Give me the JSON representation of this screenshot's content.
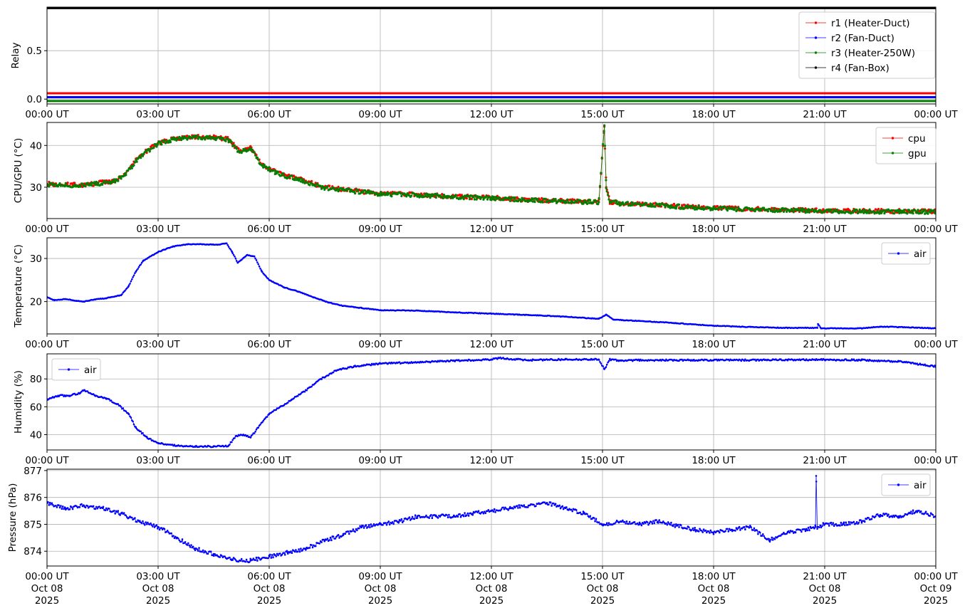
{
  "chart_data": [
    {
      "type": "line",
      "ylabel": "Relay",
      "ylim": [
        -0.05,
        0.95
      ],
      "yticks": [
        0.0,
        0.5
      ],
      "ytick_labels": [
        "0.0",
        "0.5"
      ],
      "xlim": [
        0,
        24
      ],
      "xtick_hours": [
        0,
        3,
        6,
        9,
        12,
        15,
        18,
        21,
        24
      ],
      "xtick_labels": [
        "00:00 UT",
        "03:00 UT",
        "06:00 UT",
        "09:00 UT",
        "12:00 UT",
        "15:00 UT",
        "18:00 UT",
        "21:00 UT",
        "00:00 UT"
      ],
      "grid": true,
      "legend_position": "upper right",
      "series": [
        {
          "name": "r1 (Heater-Duct)",
          "color": "#ff0000",
          "x": [
            0,
            24
          ],
          "y": [
            0.06,
            0.06
          ]
        },
        {
          "name": "r2 (Fan-Duct)",
          "color": "#0000ff",
          "x": [
            0,
            24
          ],
          "y": [
            0.02,
            0.02
          ]
        },
        {
          "name": "r3 (Heater-250W)",
          "color": "#008000",
          "x": [
            0,
            24
          ],
          "y": [
            -0.02,
            -0.02
          ]
        },
        {
          "name": "r4 (Fan-Box)",
          "color": "#000000",
          "x": [
            0,
            24
          ],
          "y": [
            0.94,
            0.94
          ]
        }
      ]
    },
    {
      "type": "line",
      "ylabel": "CPU/GPU (°C)",
      "ylim": [
        22.5,
        45.5
      ],
      "yticks": [
        30,
        40
      ],
      "ytick_labels": [
        "30",
        "40"
      ],
      "xlim": [
        0,
        24
      ],
      "xtick_hours": [
        0,
        3,
        6,
        9,
        12,
        15,
        18,
        21,
        24
      ],
      "xtick_labels": [
        "00:00 UT",
        "03:00 UT",
        "06:00 UT",
        "09:00 UT",
        "12:00 UT",
        "15:00 UT",
        "18:00 UT",
        "21:00 UT",
        "00:00 UT"
      ],
      "grid": true,
      "legend_position": "upper right",
      "series": [
        {
          "name": "cpu",
          "color": "#ff0000",
          "x": [
            0,
            1,
            1.8,
            2.1,
            2.5,
            3,
            3.5,
            4,
            4.5,
            4.9,
            5.2,
            5.5,
            5.8,
            6.2,
            6.8,
            7.5,
            8,
            9,
            10,
            11,
            12,
            13,
            14,
            14.9,
            15.05,
            15.1,
            15.2,
            15.5,
            16,
            17,
            18,
            19,
            20,
            21,
            22,
            23,
            24
          ],
          "y": [
            30.8,
            30.5,
            31.5,
            33,
            37.5,
            40.5,
            41.8,
            42,
            42,
            41.5,
            38.5,
            39.5,
            35.5,
            33.5,
            32,
            30,
            29.5,
            28.5,
            28.2,
            27.8,
            27.5,
            27,
            26.7,
            26.5,
            44.5,
            30,
            26.5,
            26.2,
            26,
            25.5,
            25,
            24.8,
            24.6,
            24.4,
            24.3,
            24.3,
            24.2
          ]
        },
        {
          "name": "gpu",
          "color": "#008000",
          "x": [
            0,
            1,
            1.8,
            2.1,
            2.5,
            3,
            3.5,
            4,
            4.5,
            4.9,
            5.2,
            5.5,
            5.8,
            6.2,
            6.8,
            7.5,
            8,
            9,
            10,
            11,
            12,
            13,
            14,
            14.9,
            15.05,
            15.1,
            15.2,
            15.5,
            16,
            17,
            18,
            19,
            20,
            21,
            22,
            23,
            24
          ],
          "y": [
            30.6,
            30.4,
            31.4,
            32.8,
            37.3,
            40.4,
            41.6,
            41.9,
            41.8,
            41.3,
            38.4,
            39.3,
            35.3,
            33.3,
            31.8,
            29.8,
            29.3,
            28.4,
            28.1,
            27.7,
            27.4,
            26.9,
            26.6,
            26.4,
            44.8,
            29.8,
            26.4,
            26.1,
            25.9,
            25.4,
            24.9,
            24.7,
            24.5,
            24.3,
            24.2,
            24.2,
            24.1
          ]
        }
      ]
    },
    {
      "type": "line",
      "ylabel": "Temperature (°C)",
      "ylim": [
        12.5,
        34.8
      ],
      "yticks": [
        20,
        30
      ],
      "ytick_labels": [
        "20",
        "30"
      ],
      "xlim": [
        0,
        24
      ],
      "xtick_hours": [
        0,
        3,
        6,
        9,
        12,
        15,
        18,
        21,
        24
      ],
      "xtick_labels": [
        "00:00 UT",
        "03:00 UT",
        "06:00 UT",
        "09:00 UT",
        "12:00 UT",
        "15:00 UT",
        "18:00 UT",
        "21:00 UT",
        "00:00 UT"
      ],
      "grid": true,
      "legend_position": "upper right",
      "series": [
        {
          "name": "air",
          "color": "#0000ff",
          "x": [
            0,
            0.2,
            0.5,
            0.8,
            1.0,
            1.3,
            1.6,
            2.0,
            2.2,
            2.4,
            2.6,
            3.0,
            3.4,
            3.8,
            4.2,
            4.6,
            4.85,
            5.0,
            5.15,
            5.4,
            5.6,
            5.8,
            6.0,
            6.4,
            6.8,
            7.2,
            7.6,
            8.0,
            8.5,
            9.0,
            10.0,
            11.0,
            12.0,
            13.0,
            14.0,
            14.9,
            15.1,
            15.3,
            16.0,
            17.0,
            18.0,
            19.0,
            20.0,
            20.8,
            20.82,
            20.9,
            21.0,
            22.0,
            22.5,
            23.0,
            24.0
          ],
          "y": [
            21.0,
            20.3,
            20.6,
            20.2,
            20.0,
            20.5,
            20.8,
            21.5,
            23.5,
            27.0,
            29.5,
            31.5,
            32.8,
            33.3,
            33.3,
            33.2,
            33.5,
            31.5,
            29.0,
            30.8,
            30.5,
            27.0,
            25.0,
            23.3,
            22.3,
            21.0,
            19.8,
            19.0,
            18.5,
            18.0,
            17.9,
            17.5,
            17.2,
            16.9,
            16.5,
            16.0,
            17.0,
            15.8,
            15.5,
            15.0,
            14.4,
            14.1,
            13.9,
            13.9,
            14.8,
            13.8,
            13.8,
            13.8,
            14.2,
            14.1,
            13.8
          ]
        }
      ]
    },
    {
      "type": "line",
      "ylabel": "Humidity (%)",
      "ylim": [
        29,
        98
      ],
      "yticks": [
        40,
        60,
        80
      ],
      "ytick_labels": [
        "40",
        "60",
        "80"
      ],
      "xlim": [
        0,
        24
      ],
      "xtick_hours": [
        0,
        3,
        6,
        9,
        12,
        15,
        18,
        21,
        24
      ],
      "xtick_labels": [
        "00:00 UT",
        "03:00 UT",
        "06:00 UT",
        "09:00 UT",
        "12:00 UT",
        "15:00 UT",
        "18:00 UT",
        "21:00 UT",
        "00:00 UT"
      ],
      "grid": true,
      "legend_position": "upper left",
      "series": [
        {
          "name": "air",
          "color": "#0000ff",
          "x": [
            0,
            0.3,
            0.6,
            0.9,
            1.0,
            1.3,
            1.6,
            1.9,
            2.2,
            2.4,
            2.7,
            3.0,
            3.5,
            4.0,
            4.5,
            4.9,
            5.1,
            5.3,
            5.5,
            5.7,
            6.0,
            6.3,
            6.6,
            7.0,
            7.4,
            7.8,
            8.3,
            9.0,
            10.0,
            11.0,
            12.0,
            12.2,
            13.0,
            14.0,
            14.9,
            15.05,
            15.2,
            15.5,
            16.0,
            17.0,
            18.0,
            19.0,
            20.0,
            21.0,
            22.0,
            23.0,
            24.0
          ],
          "y": [
            65,
            68,
            68,
            70,
            72,
            68,
            66,
            62,
            55,
            45,
            38,
            34,
            32,
            31.5,
            31.5,
            32,
            39,
            40,
            38,
            45,
            55,
            60,
            65,
            72,
            80,
            86,
            89,
            91,
            92,
            93,
            94,
            95,
            93.5,
            94,
            94,
            87,
            94,
            93,
            93.5,
            93.5,
            93.5,
            93.5,
            93.8,
            93.8,
            93.5,
            92.5,
            89
          ]
        }
      ]
    },
    {
      "type": "line",
      "ylabel": "Pressure (hPa)",
      "ylim": [
        873.45,
        877.05
      ],
      "yticks": [
        874,
        875,
        876,
        877
      ],
      "ytick_labels": [
        "874",
        "875",
        "876",
        "877"
      ],
      "xlim": [
        0,
        24
      ],
      "xtick_hours": [
        0,
        3,
        6,
        9,
        12,
        15,
        18,
        21,
        24
      ],
      "xtick_labels": [
        "00:00 UT\nOct 08\n2025",
        "03:00 UT\nOct 08\n2025",
        "06:00 UT\nOct 08\n2025",
        "09:00 UT\nOct 08\n2025",
        "12:00 UT\nOct 08\n2025",
        "15:00 UT\nOct 08\n2025",
        "18:00 UT\nOct 08\n2025",
        "21:00 UT\nOct 08\n2025",
        "00:00 UT\nOct 09\n2025"
      ],
      "grid": true,
      "legend_position": "upper right",
      "series": [
        {
          "name": "air",
          "color": "#0000ff",
          "x": [
            0,
            0.5,
            1.0,
            1.5,
            2.0,
            2.5,
            3.0,
            3.5,
            4.0,
            4.5,
            5.0,
            5.5,
            6.0,
            6.5,
            7.0,
            7.5,
            8.0,
            8.5,
            9.0,
            9.5,
            10.0,
            10.5,
            11.0,
            11.5,
            12.0,
            12.5,
            13.0,
            13.5,
            14.0,
            14.5,
            15.0,
            15.5,
            16.0,
            16.5,
            17.0,
            17.5,
            18.0,
            18.5,
            19.0,
            19.5,
            20.0,
            20.5,
            20.75,
            20.77,
            20.8,
            21.0,
            21.5,
            22.0,
            22.5,
            23.0,
            23.5,
            24.0
          ],
          "y": [
            875.8,
            875.6,
            875.7,
            875.6,
            875.4,
            875.1,
            874.9,
            874.5,
            874.1,
            873.9,
            873.7,
            873.65,
            873.8,
            873.95,
            874.1,
            874.4,
            874.6,
            874.9,
            875.0,
            875.1,
            875.3,
            875.3,
            875.3,
            875.4,
            875.5,
            875.6,
            875.7,
            875.8,
            875.6,
            875.4,
            875.0,
            875.1,
            875.0,
            875.1,
            874.95,
            874.8,
            874.7,
            874.8,
            874.9,
            874.4,
            874.7,
            874.8,
            874.9,
            876.8,
            874.9,
            875.0,
            875.0,
            875.1,
            875.35,
            875.3,
            875.5,
            875.3
          ]
        }
      ]
    }
  ]
}
